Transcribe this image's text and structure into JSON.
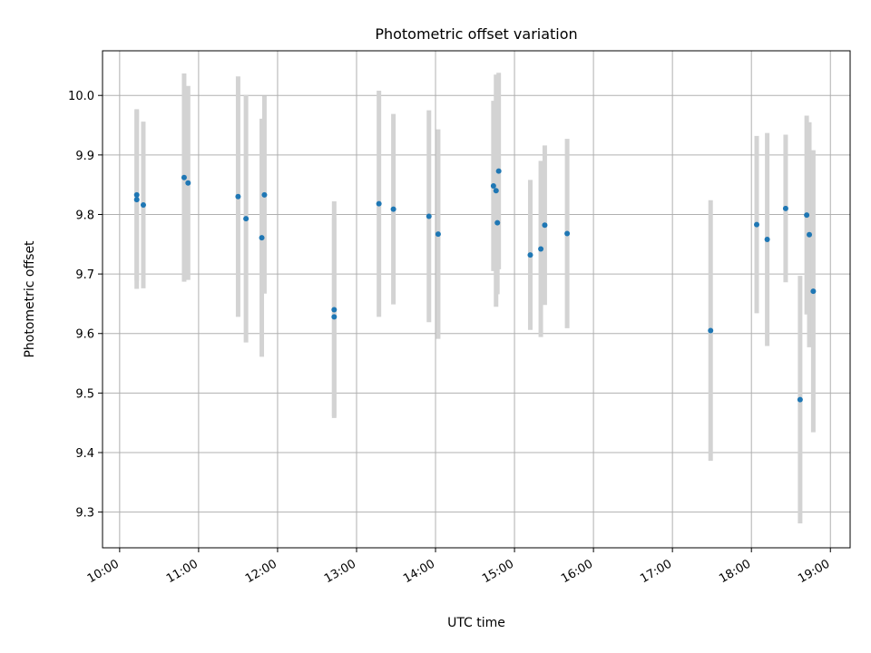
{
  "chart_data": {
    "type": "scatter",
    "title": "Photometric offset variation",
    "xlabel": "UTC time",
    "ylabel": "Photometric offset",
    "x_ticks": [
      "10:00",
      "11:00",
      "12:00",
      "13:00",
      "14:00",
      "15:00",
      "16:00",
      "17:00",
      "18:00",
      "19:00"
    ],
    "y_ticks": [
      "9.3",
      "9.4",
      "9.5",
      "9.6",
      "9.7",
      "9.8",
      "9.9",
      "10.0"
    ],
    "xlim": [
      "09:47",
      "19:15"
    ],
    "ylim": [
      9.24,
      10.075
    ],
    "grid": true,
    "colors": {
      "point": "#1f77b4",
      "errorbar": "#d3d3d3",
      "grid": "#b0b0b0"
    },
    "points": [
      {
        "time": "10:13",
        "y": 9.825,
        "err": 0.15
      },
      {
        "time": "10:13",
        "y": 9.833,
        "err": 0.144
      },
      {
        "time": "10:18",
        "y": 9.816,
        "err": 0.14
      },
      {
        "time": "10:49",
        "y": 9.862,
        "err": 0.175
      },
      {
        "time": "10:52",
        "y": 9.853,
        "err": 0.163
      },
      {
        "time": "11:30",
        "y": 9.83,
        "err": 0.202
      },
      {
        "time": "11:36",
        "y": 9.793,
        "err": 0.208
      },
      {
        "time": "11:48",
        "y": 9.761,
        "err": 0.2
      },
      {
        "time": "11:50",
        "y": 9.833,
        "err": 0.166
      },
      {
        "time": "12:43",
        "y": 9.628,
        "err": 0.167
      },
      {
        "time": "12:43",
        "y": 9.64,
        "err": 0.182
      },
      {
        "time": "13:17",
        "y": 9.818,
        "err": 0.19
      },
      {
        "time": "13:28",
        "y": 9.809,
        "err": 0.16
      },
      {
        "time": "13:55",
        "y": 9.797,
        "err": 0.178
      },
      {
        "time": "14:02",
        "y": 9.767,
        "err": 0.176
      },
      {
        "time": "14:44",
        "y": 9.848,
        "err": 0.143
      },
      {
        "time": "14:46",
        "y": 9.84,
        "err": 0.195
      },
      {
        "time": "14:47",
        "y": 9.786,
        "err": 0.12
      },
      {
        "time": "14:48",
        "y": 9.873,
        "err": 0.165
      },
      {
        "time": "15:12",
        "y": 9.732,
        "err": 0.126
      },
      {
        "time": "15:20",
        "y": 9.742,
        "err": 0.148
      },
      {
        "time": "15:23",
        "y": 9.782,
        "err": 0.134
      },
      {
        "time": "15:40",
        "y": 9.768,
        "err": 0.159
      },
      {
        "time": "17:29",
        "y": 9.605,
        "err": 0.219
      },
      {
        "time": "18:04",
        "y": 9.783,
        "err": 0.149
      },
      {
        "time": "18:12",
        "y": 9.758,
        "err": 0.179
      },
      {
        "time": "18:26",
        "y": 9.81,
        "err": 0.124
      },
      {
        "time": "18:37",
        "y": 9.489,
        "err": 0.208
      },
      {
        "time": "18:42",
        "y": 9.799,
        "err": 0.167
      },
      {
        "time": "18:44",
        "y": 9.766,
        "err": 0.189
      },
      {
        "time": "18:47",
        "y": 9.671,
        "err": 0.237
      }
    ]
  }
}
